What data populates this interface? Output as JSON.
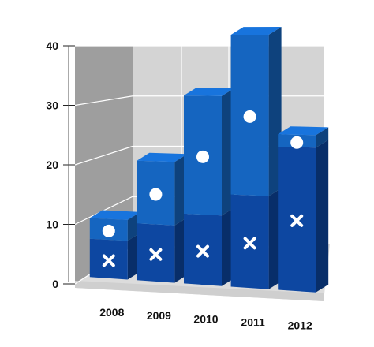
{
  "chart_data": {
    "type": "bar",
    "style": "3d-stacked-column-with-markers",
    "categories": [
      "2008",
      "2009",
      "2010",
      "2011",
      "2012"
    ],
    "series": [
      {
        "values": [
          6.5,
          9.5,
          11.5,
          15.0,
          23.0
        ],
        "color": "#0d47a1",
        "marker": "cross"
      },
      {
        "values": [
          3.5,
          10.5,
          19.5,
          26.0,
          2.0
        ],
        "color": "#1565c0",
        "marker": "circle"
      }
    ],
    "ylim": [
      0,
      40
    ],
    "yticks": [
      0,
      10,
      20,
      30,
      40
    ],
    "grid": true,
    "legend": "none",
    "colors": {
      "back_wall": "#d4d4d4",
      "left_wall": "#9e9e9e",
      "floor": "#dcdcdc",
      "grid": "#ffffff",
      "marker": "#ffffff"
    }
  }
}
